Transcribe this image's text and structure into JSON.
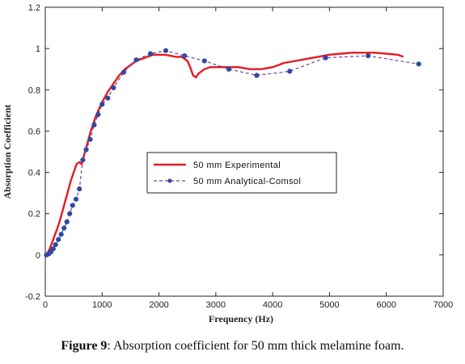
{
  "figure": {
    "caption_label": "Figure 9",
    "caption_text": ": Absorption coefficient for 50 mm thick melamine foam."
  },
  "chart_data": {
    "type": "line",
    "xlabel": "Frequency (Hz)",
    "ylabel": "Absorption Coefficient",
    "xlim": [
      0,
      7000
    ],
    "ylim": [
      -0.2,
      1.2
    ],
    "xticks": [
      0,
      1000,
      2000,
      3000,
      4000,
      5000,
      6000,
      7000
    ],
    "xtick_labels": [
      "0",
      "1000",
      "2000",
      "3000",
      "4000",
      "5000",
      "6000",
      "7000"
    ],
    "yticks": [
      -0.2,
      0,
      0.2,
      0.4,
      0.6,
      0.8,
      1,
      1.2
    ],
    "ytick_labels": [
      "-0.2",
      "0",
      "0.2",
      "0.4",
      "0.6",
      "0.8",
      "1",
      "1.2"
    ],
    "grid": false,
    "legend_position": "center",
    "series": [
      {
        "name": "50 mm Experimental",
        "color": "#e31b23",
        "style": "solid",
        "x": [
          40,
          80,
          120,
          160,
          200,
          250,
          300,
          350,
          400,
          450,
          500,
          550,
          600,
          640,
          680,
          720,
          760,
          800,
          850,
          900,
          950,
          1000,
          1100,
          1200,
          1300,
          1400,
          1500,
          1600,
          1700,
          1800,
          1900,
          2000,
          2100,
          2200,
          2300,
          2400,
          2500,
          2550,
          2600,
          2650,
          2700,
          2800,
          2900,
          3000,
          3200,
          3400,
          3600,
          3800,
          4000,
          4200,
          4400,
          4600,
          4800,
          5000,
          5200,
          5400,
          5600,
          5800,
          6000,
          6200,
          6300
        ],
        "y": [
          0.01,
          0.03,
          0.06,
          0.09,
          0.12,
          0.16,
          0.21,
          0.26,
          0.31,
          0.36,
          0.4,
          0.44,
          0.45,
          0.44,
          0.48,
          0.52,
          0.56,
          0.6,
          0.64,
          0.68,
          0.71,
          0.74,
          0.79,
          0.83,
          0.87,
          0.9,
          0.92,
          0.94,
          0.95,
          0.96,
          0.97,
          0.97,
          0.97,
          0.965,
          0.96,
          0.96,
          0.94,
          0.91,
          0.87,
          0.86,
          0.88,
          0.9,
          0.91,
          0.91,
          0.91,
          0.91,
          0.9,
          0.9,
          0.91,
          0.93,
          0.94,
          0.95,
          0.96,
          0.97,
          0.975,
          0.98,
          0.98,
          0.98,
          0.975,
          0.97,
          0.96
        ]
      },
      {
        "name": "50 mm Analytical-Comsol",
        "color": "#7d3c98",
        "marker_color": "#2e4aa1",
        "style": "dashed",
        "x": [
          20,
          60,
          100,
          140,
          180,
          230,
          280,
          330,
          380,
          430,
          480,
          540,
          600,
          660,
          720,
          790,
          860,
          930,
          1000,
          1100,
          1200,
          1380,
          1600,
          1850,
          2120,
          2450,
          2800,
          3230,
          3720,
          4300,
          4930,
          5680,
          6570
        ],
        "y": [
          0.0,
          0.005,
          0.015,
          0.03,
          0.05,
          0.075,
          0.1,
          0.13,
          0.16,
          0.2,
          0.24,
          0.27,
          0.32,
          0.46,
          0.51,
          0.56,
          0.63,
          0.68,
          0.73,
          0.76,
          0.81,
          0.885,
          0.945,
          0.975,
          0.99,
          0.965,
          0.94,
          0.9,
          0.87,
          0.89,
          0.955,
          0.965,
          0.925
        ]
      }
    ]
  }
}
